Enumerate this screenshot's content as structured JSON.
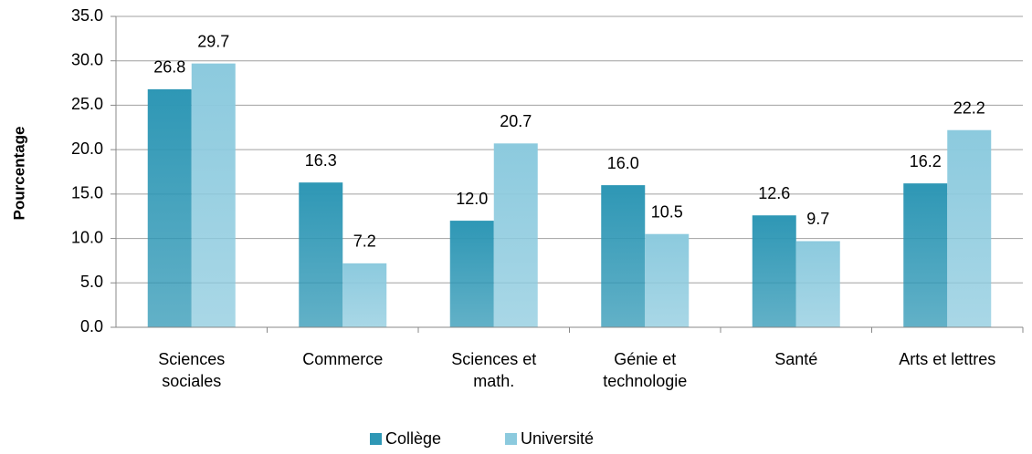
{
  "chart_data": {
    "type": "bar",
    "ylabel": "Pourcentage",
    "categories": [
      "Sciences\nsociales",
      "Commerce",
      "Sciences et\nmath.",
      "Génie et\ntechnologie",
      "Santé",
      "Arts et lettres"
    ],
    "series": [
      {
        "name": "Collège",
        "color": "#2e97b5",
        "values": [
          26.8,
          16.3,
          12.0,
          16.0,
          12.6,
          16.2
        ],
        "value_labels": [
          "26.8",
          "16.3",
          "12.0",
          "16.0",
          "12.6",
          "16.2"
        ]
      },
      {
        "name": "Université",
        "color": "#8ccade",
        "values": [
          29.7,
          7.2,
          20.7,
          10.5,
          9.7,
          22.2
        ],
        "value_labels": [
          "29.7",
          "7.2",
          "20.7",
          "10.5",
          "9.7",
          "22.2"
        ]
      }
    ],
    "ylim": [
      0,
      35
    ],
    "yticks": [
      {
        "value": 0,
        "label": "0.0"
      },
      {
        "value": 5,
        "label": "5.0"
      },
      {
        "value": 10,
        "label": "10.0"
      },
      {
        "value": 15,
        "label": "15.0"
      },
      {
        "value": 20,
        "label": "20.0"
      },
      {
        "value": 25,
        "label": "25.0"
      },
      {
        "value": 30,
        "label": "30.0"
      },
      {
        "value": 35,
        "label": "35.0"
      }
    ],
    "grid": true,
    "legend": "bottom"
  }
}
